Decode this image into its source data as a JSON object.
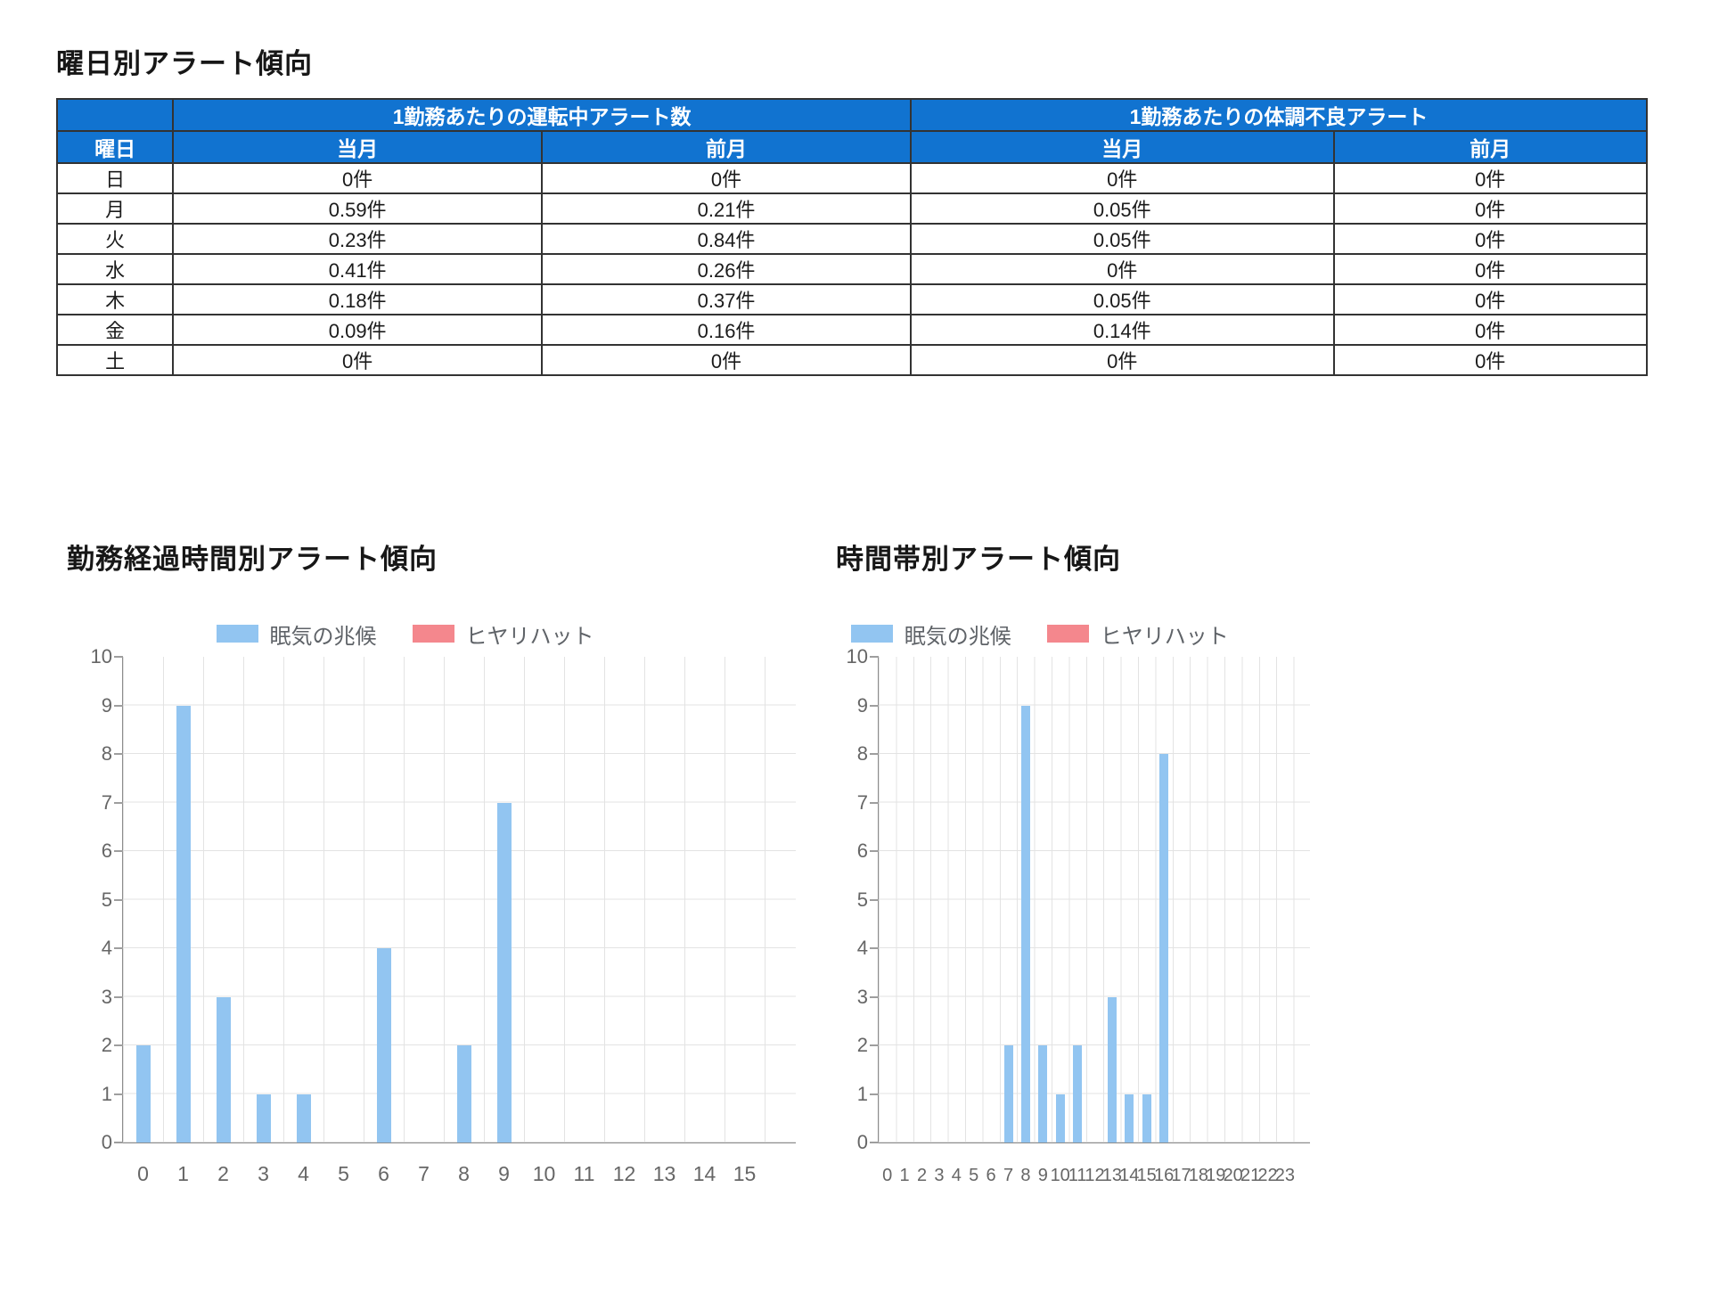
{
  "colors": {
    "header_blue": "#1173d0",
    "bar_blue": "#92c5f1",
    "bar_red": "#f4878d",
    "grid": "#e3e3e3",
    "axis": "#8c8c8c",
    "tick_text": "#666666",
    "table_border": "#333333",
    "legend_text": "#5f6368"
  },
  "weekday_section": {
    "title": "曜日別アラート傾向",
    "table": {
      "day_col_header": "曜日",
      "group_headers": [
        "1勤務あたりの運転中アラート数",
        "1勤務あたりの体調不良アラート"
      ],
      "sub_headers": [
        "当月",
        "前月",
        "当月",
        "前月"
      ],
      "rows": [
        {
          "day": "日",
          "values": [
            "0件",
            "0件",
            "0件",
            "0件"
          ]
        },
        {
          "day": "月",
          "values": [
            "0.59件",
            "0.21件",
            "0.05件",
            "0件"
          ]
        },
        {
          "day": "火",
          "values": [
            "0.23件",
            "0.84件",
            "0.05件",
            "0件"
          ]
        },
        {
          "day": "水",
          "values": [
            "0.41件",
            "0.26件",
            "0件",
            "0件"
          ]
        },
        {
          "day": "木",
          "values": [
            "0.18件",
            "0.37件",
            "0.05件",
            "0件"
          ]
        },
        {
          "day": "金",
          "values": [
            "0.09件",
            "0.16件",
            "0.14件",
            "0件"
          ]
        },
        {
          "day": "土",
          "values": [
            "0件",
            "0件",
            "0件",
            "0件"
          ]
        }
      ]
    }
  },
  "chart_data": [
    {
      "type": "bar",
      "title": "勤務経過時間別アラート傾向",
      "categories": [
        "0",
        "1",
        "2",
        "3",
        "4",
        "5",
        "6",
        "7",
        "8",
        "9",
        "10",
        "11",
        "12",
        "13",
        "14",
        "15"
      ],
      "series": [
        {
          "name": "眠気の兆候",
          "color": "#92c5f1",
          "values": [
            2,
            9,
            3,
            1,
            1,
            0,
            4,
            0,
            2,
            7,
            0,
            0,
            0,
            0,
            0,
            0
          ]
        },
        {
          "name": "ヒヤリハット",
          "color": "#f4878d",
          "values": [
            0,
            0,
            0,
            0,
            0,
            0,
            0,
            0,
            0,
            0,
            0,
            0,
            0,
            0,
            0,
            0
          ]
        }
      ],
      "xlabel": "",
      "ylabel": "",
      "ylim": [
        0,
        10
      ],
      "ytick_step": 1,
      "grid": true,
      "legend_position": "top"
    },
    {
      "type": "bar",
      "title": "時間帯別アラート傾向",
      "categories": [
        "0",
        "1",
        "2",
        "3",
        "4",
        "5",
        "6",
        "7",
        "8",
        "9",
        "10",
        "11",
        "12",
        "13",
        "14",
        "15",
        "16",
        "17",
        "18",
        "19",
        "20",
        "21",
        "22",
        "23"
      ],
      "series": [
        {
          "name": "眠気の兆候",
          "color": "#92c5f1",
          "values": [
            0,
            0,
            0,
            0,
            0,
            0,
            0,
            2,
            9,
            2,
            1,
            2,
            0,
            3,
            1,
            1,
            8,
            0,
            0,
            0,
            0,
            0,
            0,
            0
          ]
        },
        {
          "name": "ヒヤリハット",
          "color": "#f4878d",
          "values": [
            0,
            0,
            0,
            0,
            0,
            0,
            0,
            0,
            0,
            0,
            0,
            0,
            0,
            0,
            0,
            0,
            0,
            0,
            0,
            0,
            0,
            0,
            0,
            0
          ]
        }
      ],
      "xlabel": "",
      "ylabel": "",
      "ylim": [
        0,
        10
      ],
      "ytick_step": 1,
      "grid": true,
      "legend_position": "top"
    }
  ]
}
